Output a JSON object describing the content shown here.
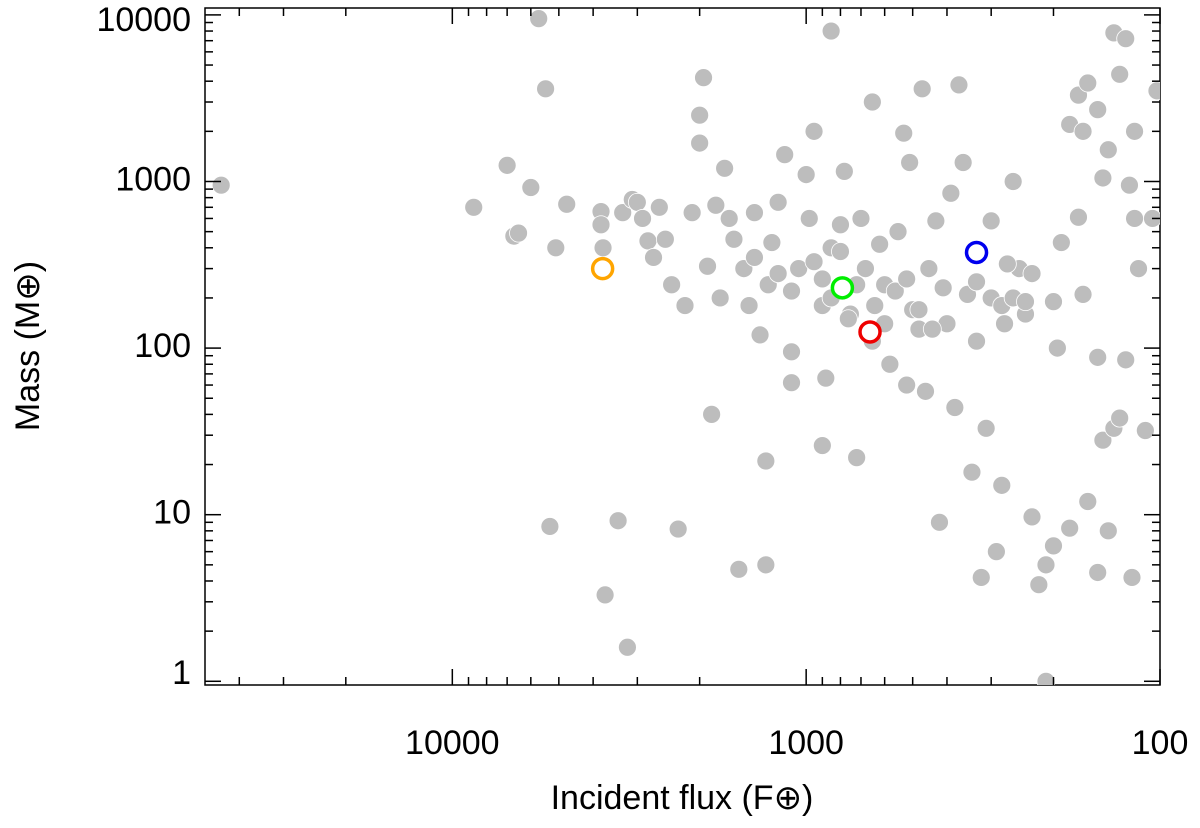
{
  "chart_data": {
    "type": "scatter",
    "xlabel": "Incident flux (F⊕)",
    "ylabel": "Mass (M⊕)",
    "xscale": "log",
    "yscale": "log",
    "xlim": [
      50000,
      100
    ],
    "ylim": [
      0.95,
      11000
    ],
    "xticks": [
      10000,
      1000,
      100
    ],
    "yticks": [
      1,
      10,
      100,
      1000,
      10000
    ],
    "xminorticks": [
      40000,
      30000,
      20000,
      9000,
      8000,
      7000,
      6000,
      5000,
      4000,
      3000,
      2000,
      900,
      800,
      700,
      600,
      500,
      400,
      300,
      200
    ],
    "yminorticks": [
      2,
      3,
      4,
      5,
      6,
      7,
      8,
      9,
      20,
      30,
      40,
      50,
      60,
      70,
      80,
      90,
      200,
      300,
      400,
      500,
      600,
      700,
      800,
      900,
      2000,
      3000,
      4000,
      5000,
      6000,
      7000,
      8000,
      9000
    ],
    "color": "#bdbdbd",
    "x": [
      45000,
      8700,
      7000,
      6700,
      6500,
      6000,
      5700,
      5450,
      5300,
      5100,
      4750,
      3800,
      3800,
      3750,
      3700,
      3400,
      3300,
      3200,
      3100,
      3000,
      2900,
      2800,
      2700,
      2600,
      2500,
      2400,
      2300,
      2200,
      2100,
      2000,
      2000,
      1950,
      1900,
      1850,
      1800,
      1750,
      1700,
      1650,
      1600,
      1550,
      1500,
      1450,
      1400,
      1350,
      1300,
      1300,
      1280,
      1250,
      1200,
      1150,
      1100,
      1100,
      1050,
      1000,
      980,
      950,
      900,
      900,
      880,
      850,
      850,
      800,
      780,
      750,
      720,
      700,
      680,
      650,
      650,
      620,
      600,
      580,
      550,
      530,
      520,
      510,
      500,
      480,
      470,
      460,
      450,
      430,
      420,
      400,
      390,
      380,
      370,
      360,
      350,
      340,
      330,
      320,
      310,
      300,
      290,
      280,
      275,
      260,
      250,
      240,
      230,
      220,
      210,
      210,
      200,
      200,
      195,
      190,
      180,
      170,
      165,
      160,
      150,
      150,
      145,
      140,
      135,
      130,
      125,
      120,
      118,
      115,
      110,
      105,
      102,
      180,
      170,
      165,
      160,
      150,
      145,
      140,
      135,
      130,
      125,
      122,
      118,
      330,
      300,
      280,
      270,
      260,
      240,
      230,
      1400,
      1200,
      1100,
      950,
      900,
      850,
      800,
      760,
      720,
      680,
      640,
      600,
      560,
      520,
      480,
      440,
      410
    ],
    "values": [
      950,
      700,
      1250,
      470,
      490,
      920,
      9500,
      3600,
      8.5,
      400,
      730,
      660,
      550,
      400,
      3.3,
      9.2,
      650,
      1.6,
      780,
      750,
      600,
      440,
      350,
      700,
      450,
      240,
      8.2,
      180,
      650,
      1700,
      2500,
      4200,
      310,
      40,
      720,
      200,
      1200,
      600,
      450,
      4.7,
      300,
      180,
      650,
      120,
      21,
      5,
      240,
      430,
      750,
      1450,
      95,
      62,
      300,
      1100,
      600,
      2000,
      26,
      180,
      66,
      8000,
      400,
      550,
      1150,
      160,
      22,
      600,
      300,
      3000,
      110,
      420,
      240,
      80,
      500,
      1950,
      60,
      1300,
      170,
      130,
      3600,
      55,
      300,
      580,
      9,
      140,
      850,
      44,
      3800,
      1300,
      210,
      18,
      110,
      4.2,
      33,
      580,
      6,
      15,
      140,
      1000,
      300,
      160,
      9.7,
      3.8,
      5,
      1,
      6.5,
      190,
      100,
      430,
      8.3,
      610,
      210,
      12,
      88,
      4.5,
      28,
      8,
      33,
      38,
      85,
      4.2,
      2000,
      300,
      32,
      600,
      3500,
      2200,
      3300,
      2000,
      3900,
      2700,
      1050,
      1550,
      7800,
      4400,
      7200,
      950,
      600,
      250,
      200,
      180,
      320,
      200,
      190,
      280,
      350,
      280,
      220,
      330,
      260,
      200,
      380,
      150,
      240,
      300,
      180,
      140,
      220,
      260,
      170,
      130,
      230
    ],
    "highlighted": [
      {
        "color": "#ffa500",
        "x": 3760,
        "y": 300
      },
      {
        "color": "#00ee00",
        "x": 790,
        "y": 230
      },
      {
        "color": "#ee0000",
        "x": 660,
        "y": 125
      },
      {
        "color": "#0000ee",
        "x": 330,
        "y": 375
      }
    ]
  }
}
